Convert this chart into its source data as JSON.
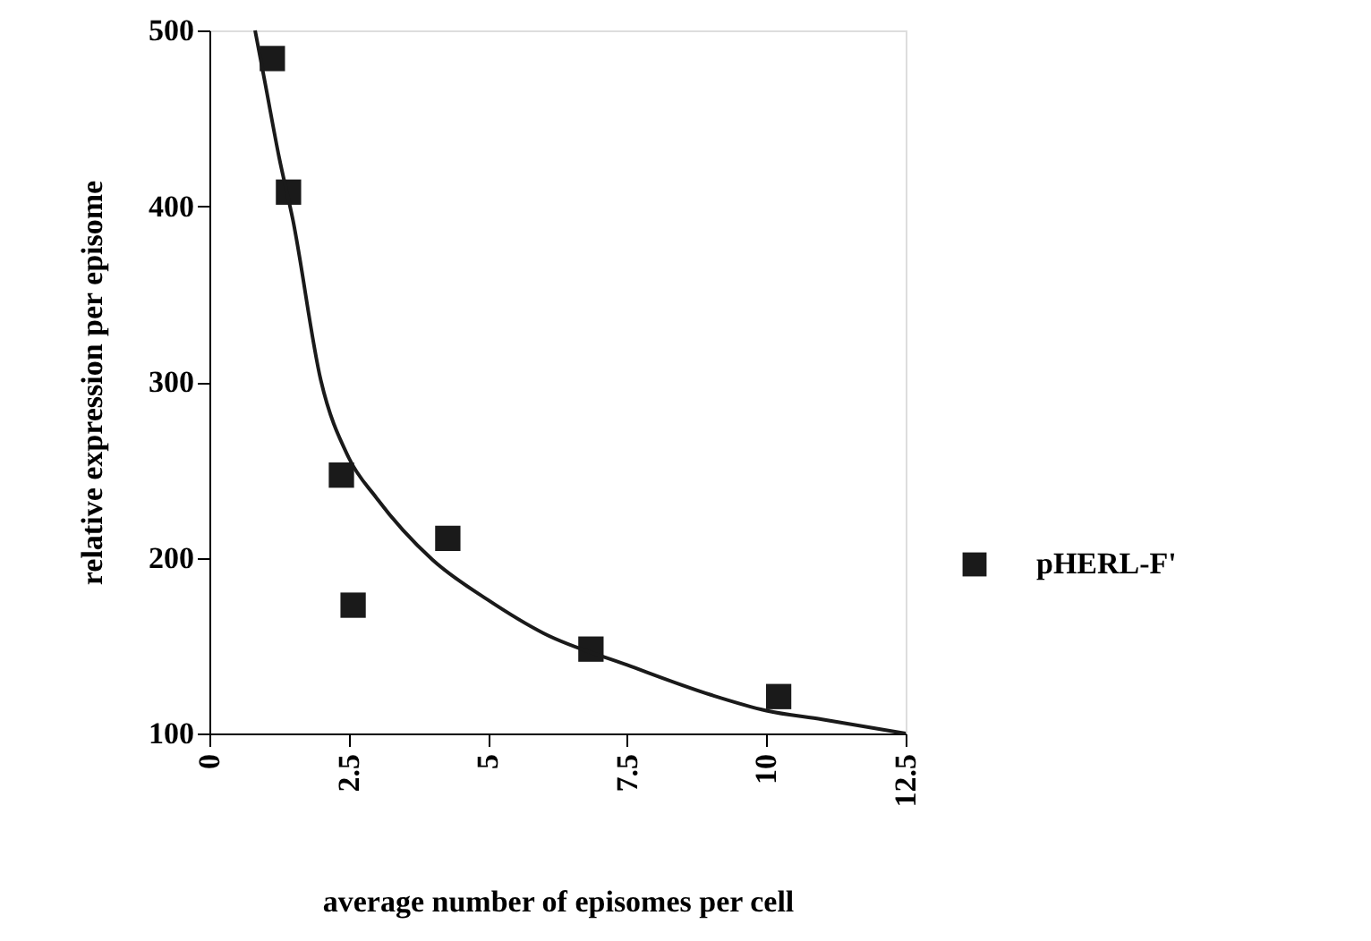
{
  "chart_data": {
    "type": "scatter",
    "xlabel": "average number of episomes per cell",
    "ylabel": "relative expression per episome",
    "series": [
      {
        "name": "pHERL-F'",
        "color": "#1a1a1a",
        "x": [
          1.13,
          1.42,
          2.37,
          2.58,
          4.28,
          6.85,
          10.22
        ],
        "values": [
          484,
          408,
          247,
          173,
          211,
          148,
          121
        ],
        "marker": "square"
      },
      {
        "type": "line",
        "color": "#1a1a1a",
        "x": [
          0.82,
          1,
          1.25,
          1.5,
          2,
          2.5,
          3,
          4,
          5,
          6,
          7.5,
          9,
          10,
          11,
          12.5
        ],
        "values": [
          500,
          470,
          428,
          392,
          301,
          257,
          234,
          199,
          176,
          157,
          139,
          122,
          113,
          108,
          100
        ],
        "marker": "none"
      }
    ],
    "xlim": [
      0,
      12.5
    ],
    "xticks": [
      0,
      2.5,
      5,
      7.5,
      10,
      12.5
    ],
    "ylim": [
      100,
      500
    ],
    "yticks": [
      100,
      200,
      300,
      400,
      500
    ],
    "grid": false,
    "legend": "right",
    "line_style": "solid"
  }
}
